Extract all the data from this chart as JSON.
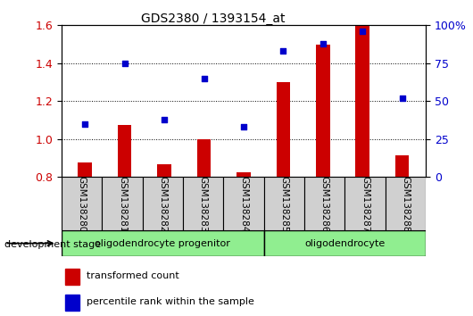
{
  "title": "GDS2380 / 1393154_at",
  "samples": [
    "GSM138280",
    "GSM138281",
    "GSM138282",
    "GSM138283",
    "GSM138284",
    "GSM138285",
    "GSM138286",
    "GSM138287",
    "GSM138288"
  ],
  "transformed_count": [
    0.875,
    1.075,
    0.865,
    1.0,
    0.825,
    1.3,
    1.5,
    1.6,
    0.915
  ],
  "percentile_rank": [
    35,
    75,
    38,
    65,
    33,
    83,
    88,
    96,
    52
  ],
  "group1_samples": 5,
  "group2_samples": 4,
  "ylim_left": [
    0.8,
    1.6
  ],
  "ylim_right": [
    0,
    100
  ],
  "yticks_left": [
    0.8,
    1.0,
    1.2,
    1.4,
    1.6
  ],
  "yticks_right": [
    0,
    25,
    50,
    75,
    100
  ],
  "bar_color": "#cc0000",
  "dot_color": "#0000cc",
  "bar_width": 0.35,
  "legend_bar_label": "transformed count",
  "legend_dot_label": "percentile rank within the sample",
  "dev_stage_label": "development stage",
  "group1_label": "oligodendrocyte progenitor",
  "group2_label": "oligodendrocyte",
  "group_color": "#90ee90",
  "sample_box_color": "#d0d0d0"
}
